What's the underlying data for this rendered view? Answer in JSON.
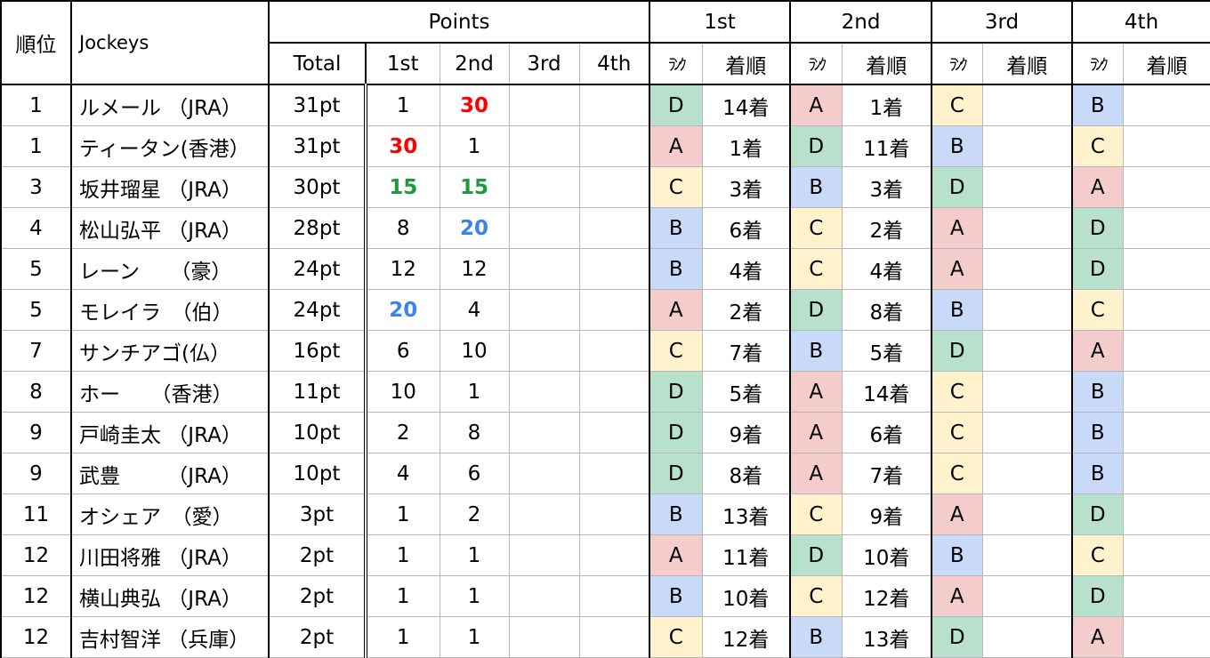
{
  "header": {
    "rank": "順位",
    "jockeys": "Jockeys",
    "points": "Points",
    "total": "Total",
    "p1": "1st",
    "p2": "2nd",
    "p3": "3rd",
    "p4": "4th",
    "races": [
      "1st",
      "2nd",
      "3rd",
      "4th"
    ],
    "rank_label": "ﾗﾝｸ",
    "finish_label": "着順"
  },
  "highlight_colors": {
    "red": "#ff0000",
    "green": "#1e9a3c",
    "blue": "#3c82f0"
  },
  "grade_colors": {
    "A": "#f4cccc",
    "B": "#c9daf8",
    "C": "#fff2cc",
    "D": "#b7e1cd"
  },
  "rows": [
    {
      "pos": "1",
      "name": "ルメール （JRA）",
      "total": "31pt",
      "p1": "1",
      "p2": "30",
      "p2c": "red",
      "r": [
        [
          "D",
          "14着"
        ],
        [
          "A",
          "1着"
        ],
        [
          "C",
          ""
        ],
        [
          "B",
          ""
        ]
      ]
    },
    {
      "pos": "1",
      "name": "ティータン(香港）",
      "total": "31pt",
      "p1": "30",
      "p1c": "red",
      "p2": "1",
      "r": [
        [
          "A",
          "1着"
        ],
        [
          "D",
          "11着"
        ],
        [
          "B",
          ""
        ],
        [
          "C",
          ""
        ]
      ]
    },
    {
      "pos": "3",
      "name": "坂井瑠星 （JRA）",
      "total": "30pt",
      "p1": "15",
      "p1c": "green",
      "p2": "15",
      "p2c": "green",
      "r": [
        [
          "C",
          "3着"
        ],
        [
          "B",
          "3着"
        ],
        [
          "D",
          ""
        ],
        [
          "A",
          ""
        ]
      ]
    },
    {
      "pos": "4",
      "name": "松山弘平 （JRA）",
      "total": "28pt",
      "p1": "8",
      "p2": "20",
      "p2c": "blue",
      "r": [
        [
          "B",
          "6着"
        ],
        [
          "C",
          "2着"
        ],
        [
          "A",
          ""
        ],
        [
          "D",
          ""
        ]
      ]
    },
    {
      "pos": "5",
      "name": "レーン　　（豪）",
      "total": "24pt",
      "p1": "12",
      "p2": "12",
      "r": [
        [
          "B",
          "4着"
        ],
        [
          "C",
          "4着"
        ],
        [
          "A",
          ""
        ],
        [
          "D",
          ""
        ]
      ]
    },
    {
      "pos": "5",
      "name": "モレイラ　（伯）",
      "total": "24pt",
      "p1": "20",
      "p1c": "blue",
      "p2": "4",
      "r": [
        [
          "A",
          "2着"
        ],
        [
          "D",
          "8着"
        ],
        [
          "B",
          ""
        ],
        [
          "C",
          ""
        ]
      ]
    },
    {
      "pos": "7",
      "name": "サンチアゴ(仏）",
      "total": "16pt",
      "p1": "6",
      "p2": "10",
      "r": [
        [
          "C",
          "7着"
        ],
        [
          "B",
          "5着"
        ],
        [
          "D",
          ""
        ],
        [
          "A",
          ""
        ]
      ]
    },
    {
      "pos": "8",
      "name": "ホー　　（香港）",
      "total": "11pt",
      "p1": "10",
      "p2": "1",
      "r": [
        [
          "D",
          "5着"
        ],
        [
          "A",
          "14着"
        ],
        [
          "C",
          ""
        ],
        [
          "B",
          ""
        ]
      ]
    },
    {
      "pos": "9",
      "name": "戸崎圭太 （JRA）",
      "total": "10pt",
      "p1": "2",
      "p2": "8",
      "r": [
        [
          "D",
          "9着"
        ],
        [
          "A",
          "6着"
        ],
        [
          "C",
          ""
        ],
        [
          "B",
          ""
        ]
      ]
    },
    {
      "pos": "9",
      "name": "武豊　　 （JRA）",
      "total": "10pt",
      "p1": "4",
      "p2": "6",
      "r": [
        [
          "D",
          "8着"
        ],
        [
          "A",
          "7着"
        ],
        [
          "C",
          ""
        ],
        [
          "B",
          ""
        ]
      ]
    },
    {
      "pos": "11",
      "name": "オシェア　（愛）",
      "total": "3pt",
      "p1": "1",
      "p2": "2",
      "r": [
        [
          "B",
          "13着"
        ],
        [
          "C",
          "9着"
        ],
        [
          "A",
          ""
        ],
        [
          "D",
          ""
        ]
      ]
    },
    {
      "pos": "12",
      "name": "川田将雅 （JRA）",
      "total": "2pt",
      "p1": "1",
      "p2": "1",
      "r": [
        [
          "A",
          "11着"
        ],
        [
          "D",
          "10着"
        ],
        [
          "B",
          ""
        ],
        [
          "C",
          ""
        ]
      ]
    },
    {
      "pos": "12",
      "name": "横山典弘 （JRA）",
      "total": "2pt",
      "p1": "1",
      "p2": "1",
      "r": [
        [
          "B",
          "10着"
        ],
        [
          "C",
          "12着"
        ],
        [
          "A",
          ""
        ],
        [
          "D",
          ""
        ]
      ]
    },
    {
      "pos": "12",
      "name": "吉村智洋 （兵庫）",
      "total": "2pt",
      "p1": "1",
      "p2": "1",
      "r": [
        [
          "C",
          "12着"
        ],
        [
          "B",
          "13着"
        ],
        [
          "D",
          ""
        ],
        [
          "A",
          ""
        ]
      ]
    }
  ]
}
